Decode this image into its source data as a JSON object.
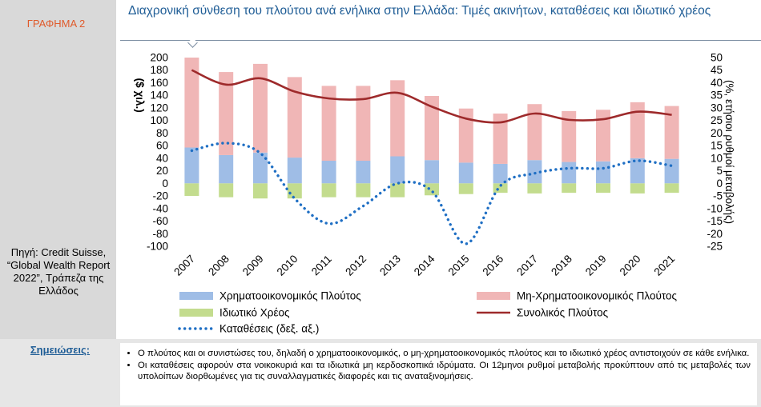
{
  "figure_label": "ΓΡΑΦΗΜΑ 2",
  "title": "Διαχρονική σύνθεση του πλούτου ανά ενήλικα στην Ελλάδα: Τιμές ακινήτων, καταθέσεις και ιδιωτικό χρέος",
  "source": "Πηγή: Credit Suisse, “Global Wealth Report 2022”, Τράπεζα της Ελλάδος",
  "notes_label": "Σημειώσεις:",
  "notes": [
    "Ο πλούτος και οι συνιστώσες του, δηλαδή ο χρηματοοικονομικός, ο μη-χρηματοοικονομικός πλούτος και το ιδιωτικό χρέος αντιστοιχούν σε κάθε ενήλικα.",
    "Οι καταθέσεις αφορούν στα νοικοκυριά και τα ιδιωτικά μη κερδοσκοπικά ιδρύματα. Οι 12μηνοι ρυθμοί μεταβολής προκύπτουν από τις μεταβολές των υπολοίπων διορθωμένες για τις συναλλαγματικές διαφορές και τις αναταξινομήσεις."
  ],
  "colors": {
    "financial": "#9fbde6",
    "non_financial": "#f0b6b6",
    "debt": "#c3dc8e",
    "total": "#9e2a2b",
    "deposits": "#1f6fc4"
  },
  "chart_data": {
    "type": "bar",
    "categories": [
      "2007",
      "2008",
      "2009",
      "2010",
      "2011",
      "2012",
      "2013",
      "2014",
      "2015",
      "2016",
      "2017",
      "2018",
      "2019",
      "2020",
      "2021"
    ],
    "ylabel": "($ χιλ.)",
    "y2label": "(%, ετήσιοι ρυθμοί μεταβολής)",
    "ylim": [
      -100,
      200
    ],
    "y2lim": [
      -25,
      50
    ],
    "yticks": [
      "200",
      "180",
      "160",
      "140",
      "120",
      "100",
      "80",
      "60",
      "40",
      "20",
      "0",
      "-20",
      "-40",
      "-60",
      "-80",
      "-100"
    ],
    "y2ticks": [
      "50",
      "45",
      "40",
      "35",
      "30",
      "25",
      "20",
      "15",
      "10",
      "5",
      "0",
      "-5",
      "-10",
      "-15",
      "-20",
      "-25"
    ],
    "series": [
      {
        "name": "Χρηματοοικονομικός Πλούτος",
        "kind": "bar",
        "values": [
          57,
          45,
          49,
          41,
          36,
          36,
          43,
          37,
          33,
          31,
          37,
          34,
          35,
          40,
          39
        ]
      },
      {
        "name": "Μη-Χρηματοοικονομικός Πλούτος",
        "kind": "bar",
        "values": [
          143,
          132,
          141,
          128,
          119,
          119,
          121,
          102,
          86,
          80,
          89,
          81,
          82,
          89,
          84
        ]
      },
      {
        "name": "Ιδιωτικό Χρέος",
        "kind": "bar",
        "values": [
          -20,
          -22,
          -24,
          -24,
          -22,
          -22,
          -22,
          -19,
          -17,
          -15,
          -16,
          -15,
          -15,
          -16,
          -15
        ]
      },
      {
        "name": "Συνολικός Πλούτος",
        "kind": "line",
        "axis": "left",
        "values": [
          180,
          157,
          167,
          146,
          135,
          134,
          144,
          122,
          103,
          97,
          111,
          101,
          102,
          114,
          109
        ]
      },
      {
        "name": "Καταθέσεις (δεξ. αξ.)",
        "kind": "dotted",
        "axis": "right",
        "values": [
          13,
          16,
          12,
          -6,
          -16,
          -9,
          0,
          -3,
          -24,
          -1,
          4,
          6,
          6,
          9,
          7
        ]
      }
    ],
    "legend_position": "bottom"
  }
}
